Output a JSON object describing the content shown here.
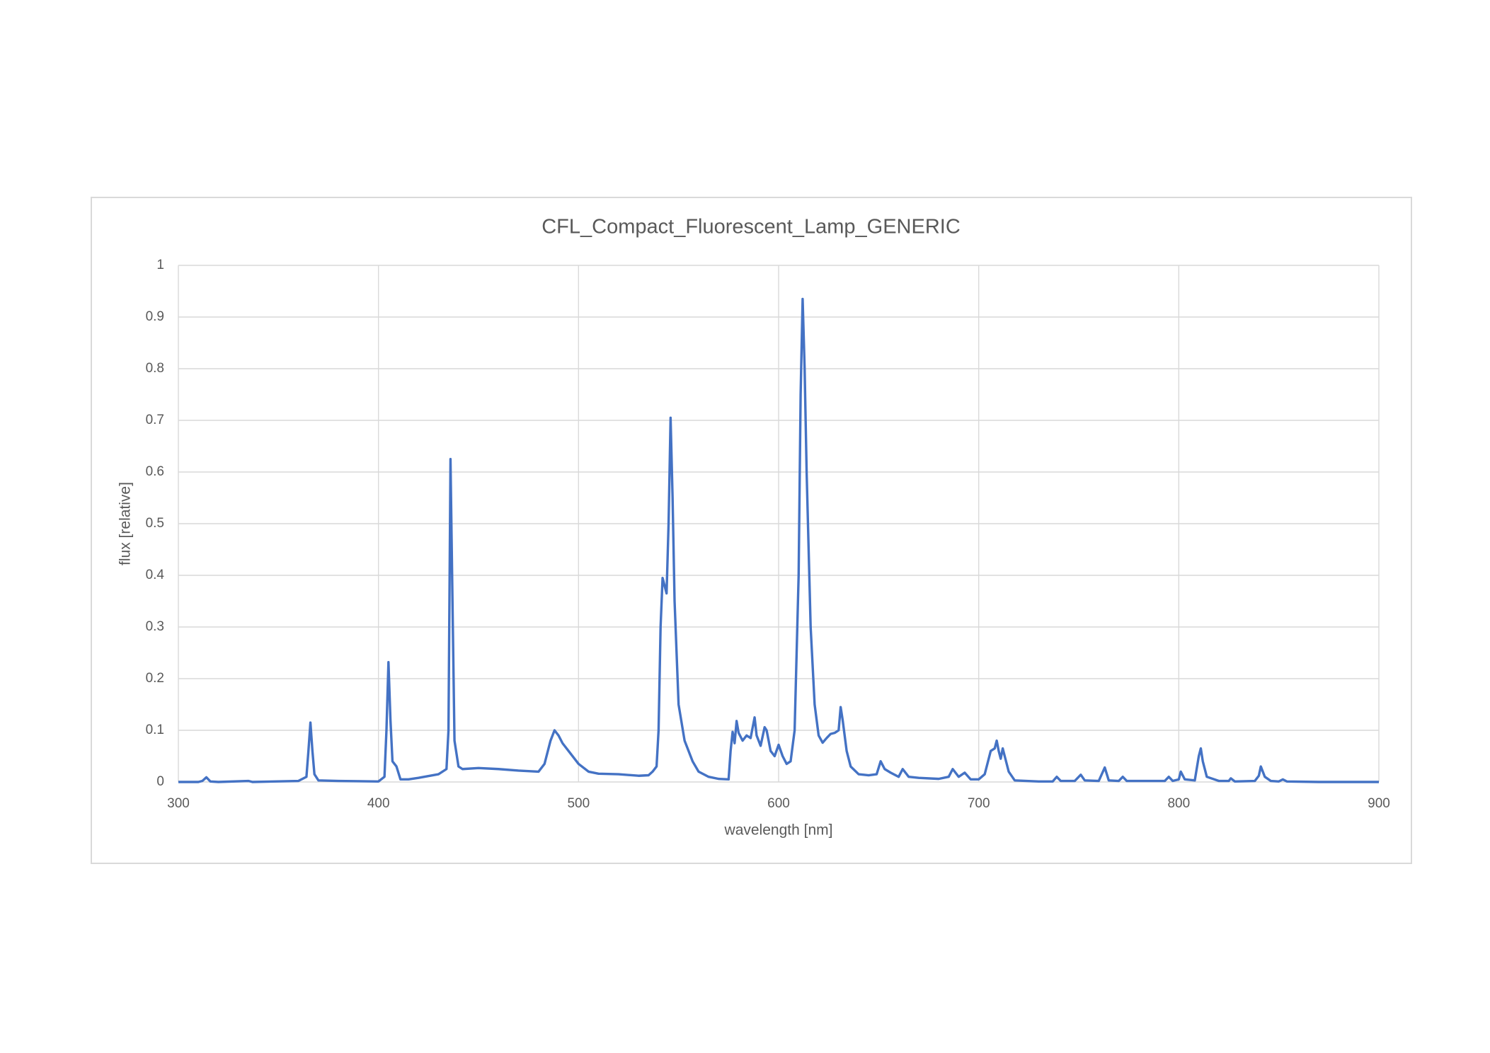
{
  "chart_data": {
    "type": "line",
    "title": "CFL_Compact_Fluorescent_Lamp_GENERIC",
    "x_label": "wavelength [nm]",
    "y_label": "flux [relative]",
    "color": "#4472c4",
    "grid": true,
    "xlim": [
      300,
      900
    ],
    "ylim": [
      0,
      1
    ],
    "xticks": [
      300,
      400,
      500,
      600,
      700,
      800,
      900
    ],
    "yticks": [
      0,
      0.1,
      0.2,
      0.3,
      0.4,
      0.5,
      0.6,
      0.7,
      0.8,
      0.9,
      1
    ],
    "x": [
      300,
      310,
      312,
      314,
      316,
      320,
      335,
      337,
      360,
      364,
      365,
      366,
      367,
      368,
      370,
      380,
      400,
      403,
      404,
      405,
      406,
      407,
      409,
      411,
      415,
      420,
      430,
      434,
      435,
      436,
      437,
      438,
      440,
      442,
      450,
      460,
      470,
      480,
      483,
      486,
      488,
      490,
      492,
      495,
      500,
      505,
      510,
      520,
      530,
      535,
      537,
      539,
      540,
      541,
      542,
      543,
      544,
      545,
      546,
      547,
      548,
      550,
      553,
      557,
      560,
      565,
      570,
      575,
      576,
      577,
      578,
      579,
      580,
      582,
      584,
      586,
      588,
      589,
      591,
      593,
      594,
      596,
      598,
      600,
      602,
      604,
      606,
      608,
      610,
      611,
      612,
      613,
      614,
      616,
      618,
      620,
      622,
      624,
      626,
      628,
      630,
      631,
      632,
      634,
      636,
      640,
      645,
      649,
      651,
      653,
      656,
      660,
      662,
      665,
      670,
      680,
      685,
      687,
      690,
      693,
      696,
      700,
      703,
      706,
      708,
      709,
      710,
      711,
      712,
      713,
      715,
      718,
      730,
      737,
      739,
      741,
      748,
      751,
      753,
      760,
      763,
      765,
      770,
      772,
      774,
      793,
      795,
      797,
      800,
      801,
      803,
      808,
      810,
      811,
      812,
      814,
      820,
      825,
      826,
      828,
      838,
      840,
      841,
      843,
      846,
      850,
      852,
      854,
      870,
      900
    ],
    "values": [
      0,
      0,
      0.002,
      0.009,
      0.001,
      0,
      0.002,
      0,
      0.002,
      0.01,
      0.06,
      0.115,
      0.06,
      0.015,
      0.003,
      0.002,
      0.001,
      0.01,
      0.1,
      0.232,
      0.12,
      0.04,
      0.03,
      0.005,
      0.005,
      0.008,
      0.015,
      0.025,
      0.1,
      0.625,
      0.35,
      0.08,
      0.03,
      0.025,
      0.027,
      0.025,
      0.022,
      0.02,
      0.035,
      0.08,
      0.1,
      0.09,
      0.075,
      0.06,
      0.035,
      0.02,
      0.016,
      0.015,
      0.012,
      0.013,
      0.02,
      0.03,
      0.1,
      0.3,
      0.395,
      0.38,
      0.365,
      0.5,
      0.705,
      0.55,
      0.35,
      0.15,
      0.08,
      0.04,
      0.02,
      0.01,
      0.006,
      0.005,
      0.06,
      0.097,
      0.075,
      0.118,
      0.095,
      0.08,
      0.09,
      0.085,
      0.125,
      0.09,
      0.07,
      0.106,
      0.1,
      0.06,
      0.05,
      0.072,
      0.05,
      0.035,
      0.04,
      0.1,
      0.4,
      0.75,
      0.935,
      0.8,
      0.6,
      0.3,
      0.15,
      0.09,
      0.076,
      0.085,
      0.093,
      0.095,
      0.1,
      0.145,
      0.12,
      0.06,
      0.03,
      0.015,
      0.013,
      0.015,
      0.04,
      0.025,
      0.018,
      0.01,
      0.025,
      0.01,
      0.008,
      0.006,
      0.01,
      0.025,
      0.01,
      0.018,
      0.005,
      0.005,
      0.015,
      0.06,
      0.065,
      0.08,
      0.06,
      0.045,
      0.065,
      0.05,
      0.02,
      0.003,
      0.001,
      0.001,
      0.01,
      0.002,
      0.002,
      0.014,
      0.003,
      0.002,
      0.028,
      0.003,
      0.002,
      0.01,
      0.002,
      0.002,
      0.01,
      0.002,
      0.005,
      0.02,
      0.005,
      0.003,
      0.05,
      0.065,
      0.04,
      0.01,
      0.002,
      0.002,
      0.007,
      0.001,
      0.002,
      0.012,
      0.03,
      0.01,
      0.002,
      0.001,
      0.005,
      0.001,
      0,
      0
    ]
  }
}
